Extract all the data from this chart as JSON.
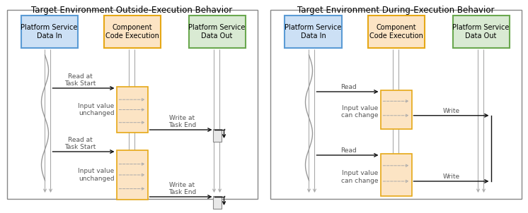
{
  "title_left": "Target Environment Outside-Execution Behavior",
  "title_right": "Target Environment During-Execution Behavior",
  "box_blue_label": "Platform Service\nData In",
  "box_orange_label": "Component\nCode Execution",
  "box_green_label": "Platform Service\nData Out",
  "blue_fill": "#cce0f5",
  "blue_edge": "#5b9bd5",
  "orange_fill": "#fce4c4",
  "orange_edge": "#e6a817",
  "green_fill": "#d9ead3",
  "green_edge": "#6aa84f",
  "exec_fill": "#fce4c4",
  "exec_edge": "#e6a817",
  "write_fill": "#e8e8e8",
  "write_edge": "#888888",
  "arrow_black": "#111111",
  "dashed_color": "#aaaaaa",
  "lifeline_color": "#aaaaaa",
  "wave_color": "#999999",
  "bg_color": "#ffffff",
  "border_color": "#888888",
  "text_color": "#555555",
  "font_size": 7.0,
  "title_font_size": 8.5
}
